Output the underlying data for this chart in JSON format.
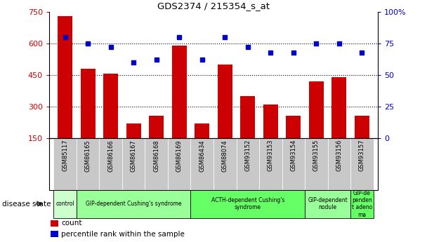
{
  "title": "GDS2374 / 215354_s_at",
  "samples": [
    "GSM85117",
    "GSM86165",
    "GSM86166",
    "GSM86167",
    "GSM86168",
    "GSM86169",
    "GSM86434",
    "GSM88074",
    "GSM93152",
    "GSM93153",
    "GSM93154",
    "GSM93155",
    "GSM93156",
    "GSM93157"
  ],
  "counts": [
    730,
    480,
    455,
    220,
    255,
    590,
    220,
    500,
    350,
    310,
    255,
    420,
    440,
    255
  ],
  "percentiles": [
    80,
    75,
    72,
    60,
    62,
    80,
    62,
    80,
    72,
    68,
    68,
    75,
    75,
    68
  ],
  "ylim_left": [
    150,
    750
  ],
  "ylim_right": [
    0,
    100
  ],
  "yticks_left": [
    150,
    300,
    450,
    600,
    750
  ],
  "yticks_right": [
    0,
    25,
    50,
    75,
    100
  ],
  "bar_color": "#cc0000",
  "dot_color": "#0000cc",
  "disease_groups": [
    {
      "label": "control",
      "start": 0,
      "end": 1,
      "color": "#ccffcc"
    },
    {
      "label": "GIP-dependent Cushing's syndrome",
      "start": 1,
      "end": 6,
      "color": "#99ff99"
    },
    {
      "label": "ACTH-dependent Cushing's\nsyndrome",
      "start": 6,
      "end": 11,
      "color": "#66ff66"
    },
    {
      "label": "GIP-dependent\nnodule",
      "start": 11,
      "end": 13,
      "color": "#99ff99"
    },
    {
      "label": "GIP-de\npenden\nt adeno\nma",
      "start": 13,
      "end": 14,
      "color": "#66ff66"
    }
  ],
  "legend_count_label": "count",
  "legend_pct_label": "percentile rank within the sample",
  "disease_state_label": "disease state",
  "bar_color_red": "#cc0000",
  "dot_color_blue": "#0000cc",
  "tick_label_color_left": "#cc0000",
  "tick_label_color_right": "#0000cc",
  "sample_bg_color": "#c8c8c8",
  "grid_dotted_color": "#000000"
}
